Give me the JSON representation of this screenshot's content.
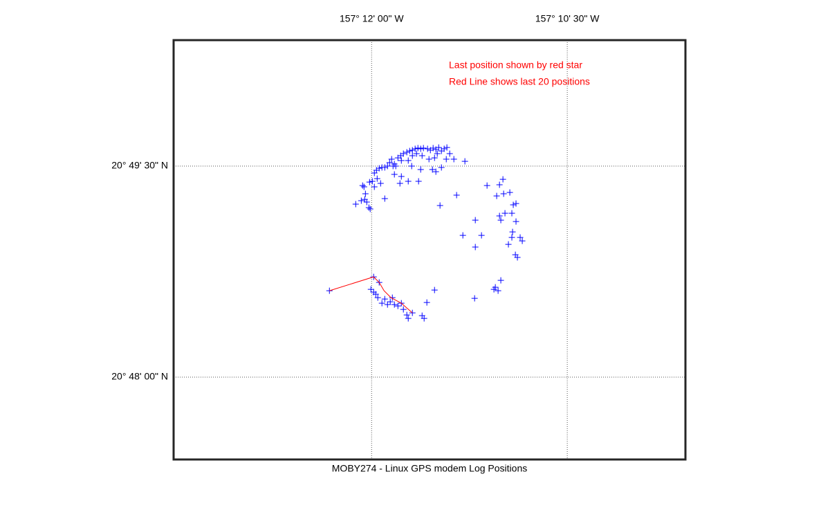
{
  "chart_data": {
    "type": "scatter",
    "title": "MOBY274 - Linux GPS modem Log Positions",
    "annotations": [
      "Last position shown by red star",
      "Red Line shows last 20 positions"
    ],
    "annotation_color": "#ff0000",
    "xlim": [
      -157.2253,
      -157.1599
    ],
    "ylim": [
      20.79025,
      20.83992
    ],
    "xticks": [
      {
        "value": -157.2,
        "label": "157° 12' 00\" W"
      },
      {
        "value": -157.175,
        "label": "157° 10' 30\" W"
      }
    ],
    "yticks": [
      {
        "value": 20.8,
        "label": "20° 48' 00\" N"
      },
      {
        "value": 20.825,
        "label": "20° 49' 30\" N"
      }
    ],
    "grid": true,
    "series": [
      {
        "type": "scatter",
        "color": "#0000ff",
        "x": [
          -157.20203,
          -157.20132,
          -157.20088,
          -157.20062,
          -157.20035,
          -157.20018,
          -157.20079,
          -157.20097,
          -157.20115,
          -157.20026,
          -157.19991,
          -157.19965,
          -157.19929,
          -157.19965,
          -157.19938,
          -157.19903,
          -157.19868,
          -157.19832,
          -157.19885,
          -157.19832,
          -157.19797,
          -157.1977,
          -157.19744,
          -157.19726,
          -157.19709,
          -157.19664,
          -157.19629,
          -157.19594,
          -157.1955,
          -157.19514,
          -157.19479,
          -157.19444,
          -157.19408,
          -157.19373,
          -157.19338,
          -157.19285,
          -157.19249,
          -157.19214,
          -157.19179,
          -157.19143,
          -157.19108,
          -157.19073,
          -157.19038,
          -157.19002,
          -157.18949,
          -157.18808,
          -157.19046,
          -157.19161,
          -157.19196,
          -157.19267,
          -157.19355,
          -157.19426,
          -157.19479,
          -157.19532,
          -157.1962,
          -157.19691,
          -157.19709,
          -157.1962,
          -157.19638,
          -157.19532,
          -157.194,
          -157.19488,
          -157.19373,
          -157.19223,
          -157.19179,
          -157.19108,
          -157.19126,
          -157.18914,
          -157.18525,
          -157.18366,
          -157.18322,
          -157.18402,
          -157.18313,
          -157.18234,
          -157.1819,
          -157.18155,
          -157.18208,
          -157.18296,
          -157.18366,
          -157.18349,
          -157.18675,
          -157.18834,
          -157.18596,
          -157.18675,
          -157.18199,
          -157.18155,
          -157.18252,
          -157.18208,
          -157.18102,
          -157.18075,
          -157.18163,
          -157.18137,
          -157.18349,
          -157.18419,
          -157.18384,
          -157.18437,
          -157.18684,
          -157.19196,
          -157.19974,
          -157.19903,
          -157.20009,
          -157.19974,
          -157.19947,
          -157.19921,
          -157.19868,
          -157.19832,
          -157.19797,
          -157.19762,
          -157.19735,
          -157.19709,
          -157.19664,
          -157.1962,
          -157.19594,
          -157.1955,
          -157.19532,
          -157.19479,
          -157.19355,
          -157.19329,
          -157.19294,
          -157.20539
        ],
        "values": [
          20.82049,
          20.8209,
          20.82106,
          20.82074,
          20.82008,
          20.81992,
          20.82172,
          20.82254,
          20.8227,
          20.82311,
          20.8232,
          20.82254,
          20.82352,
          20.82418,
          20.82451,
          20.82475,
          20.82484,
          20.82484,
          20.82295,
          20.82115,
          20.825,
          20.82541,
          20.82582,
          20.825,
          20.82525,
          20.82598,
          20.82623,
          20.82648,
          20.82664,
          20.8268,
          20.82689,
          20.82705,
          20.82713,
          20.82705,
          20.82713,
          20.82705,
          20.82689,
          20.82713,
          20.82697,
          20.82721,
          20.8268,
          20.82705,
          20.82721,
          20.82648,
          20.82582,
          20.82557,
          20.82582,
          20.82648,
          20.82598,
          20.82582,
          20.82623,
          20.82648,
          20.82623,
          20.82566,
          20.82566,
          20.825,
          20.82402,
          20.82377,
          20.82295,
          20.8232,
          20.8232,
          20.825,
          20.82459,
          20.82459,
          20.82434,
          20.82484,
          20.82033,
          20.82156,
          20.8227,
          20.82279,
          20.82344,
          20.82147,
          20.82172,
          20.82188,
          20.82041,
          20.82057,
          20.81942,
          20.81942,
          20.8191,
          20.8186,
          20.8186,
          20.8168,
          20.8168,
          20.81541,
          20.81721,
          20.81844,
          20.81573,
          20.81655,
          20.81655,
          20.81614,
          20.8145,
          20.81418,
          20.81147,
          20.81065,
          20.81024,
          20.8104,
          20.80934,
          20.81032,
          20.81188,
          20.81122,
          20.8104,
          20.81008,
          20.80983,
          20.80942,
          20.80876,
          20.80926,
          20.8086,
          20.80893,
          20.80942,
          20.8086,
          20.80844,
          20.80876,
          20.80803,
          20.80737,
          20.80696,
          20.80762,
          20.80729,
          20.80696,
          20.80885,
          20.81024
        ]
      },
      {
        "type": "line",
        "color": "#ff0000",
        "x": [
          -157.20539,
          -157.19974,
          -157.19903,
          -157.19841,
          -157.19753,
          -157.1962,
          -157.19479
        ],
        "values": [
          20.81024,
          20.81188,
          20.81122,
          20.81024,
          20.80942,
          20.80876,
          20.80762
        ]
      }
    ]
  }
}
